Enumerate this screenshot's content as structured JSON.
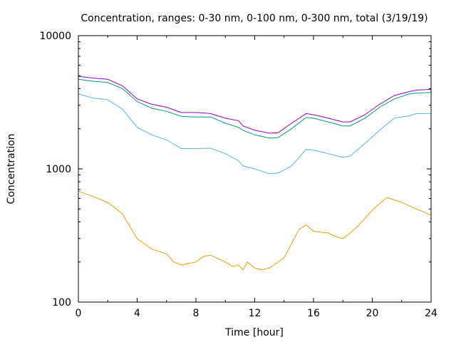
{
  "chart_data": {
    "type": "line",
    "title": "Concentration, ranges: 0-30 nm, 0-100 nm, 0-300 nm, total (3/19/19)",
    "xlabel": "Time [hour]",
    "ylabel": "Concentration",
    "xlim": [
      0,
      24
    ],
    "ylim": [
      100,
      10000
    ],
    "yscale": "log",
    "grid": false,
    "x_ticks": [
      "0",
      "4",
      "8",
      "12",
      "16",
      "20",
      "24"
    ],
    "y_ticks": [
      "100",
      "1000",
      "10000"
    ],
    "series": [
      {
        "color": "#9400d3",
        "x": [
          0,
          1,
          2,
          3,
          4,
          5,
          6,
          7,
          8,
          9,
          10,
          10.9,
          11.2,
          12,
          13,
          13.6,
          14.5,
          15.5,
          16,
          17,
          18,
          18.5,
          19.5,
          20.5,
          21.5,
          22.5,
          23,
          24
        ],
        "y": [
          4950,
          4800,
          4700,
          4200,
          3350,
          3050,
          2900,
          2650,
          2650,
          2600,
          2400,
          2300,
          2100,
          1950,
          1850,
          1870,
          2200,
          2600,
          2550,
          2400,
          2250,
          2250,
          2550,
          3050,
          3550,
          3800,
          3900,
          3950
        ]
      },
      {
        "color": "#009e73",
        "x": [
          0,
          1,
          2,
          3,
          4,
          5,
          6,
          7,
          8,
          9,
          10,
          10.9,
          11.2,
          12,
          13,
          13.6,
          14.5,
          15.5,
          16,
          17,
          18,
          18.5,
          19.5,
          20.5,
          21.5,
          22.5,
          23,
          24
        ],
        "y": [
          4700,
          4550,
          4450,
          4000,
          3200,
          2850,
          2700,
          2480,
          2450,
          2450,
          2200,
          2050,
          1950,
          1800,
          1700,
          1720,
          2000,
          2430,
          2400,
          2250,
          2100,
          2100,
          2400,
          2900,
          3350,
          3650,
          3700,
          3750
        ]
      },
      {
        "color": "#56b4e9",
        "x": [
          0,
          1,
          2,
          3,
          4,
          5,
          6,
          7,
          8,
          9,
          10,
          10.9,
          11.2,
          12,
          13,
          13.6,
          14.5,
          15.5,
          16,
          17,
          18,
          18.5,
          19.5,
          20.5,
          21.5,
          22.5,
          23,
          24
        ],
        "y": [
          3650,
          3400,
          3300,
          2800,
          2050,
          1800,
          1650,
          1420,
          1420,
          1430,
          1300,
          1150,
          1050,
          1000,
          920,
          930,
          1050,
          1400,
          1380,
          1300,
          1220,
          1250,
          1550,
          1950,
          2400,
          2500,
          2600,
          2600
        ]
      },
      {
        "color": "#e69f00",
        "x": [
          0,
          1,
          2,
          3,
          3.5,
          4,
          5,
          6,
          6.5,
          7,
          8,
          8.5,
          9,
          10,
          10.5,
          10.9,
          11.2,
          11.5,
          12,
          12.5,
          13,
          14,
          15,
          15.5,
          16,
          17,
          17.5,
          18,
          18.5,
          19,
          20,
          21,
          22,
          23,
          24
        ],
        "y": [
          680,
          620,
          560,
          460,
          370,
          300,
          250,
          230,
          200,
          190,
          200,
          220,
          225,
          200,
          185,
          190,
          175,
          200,
          180,
          175,
          180,
          215,
          350,
          380,
          340,
          330,
          310,
          300,
          330,
          370,
          490,
          610,
          560,
          500,
          450
        ]
      }
    ]
  }
}
